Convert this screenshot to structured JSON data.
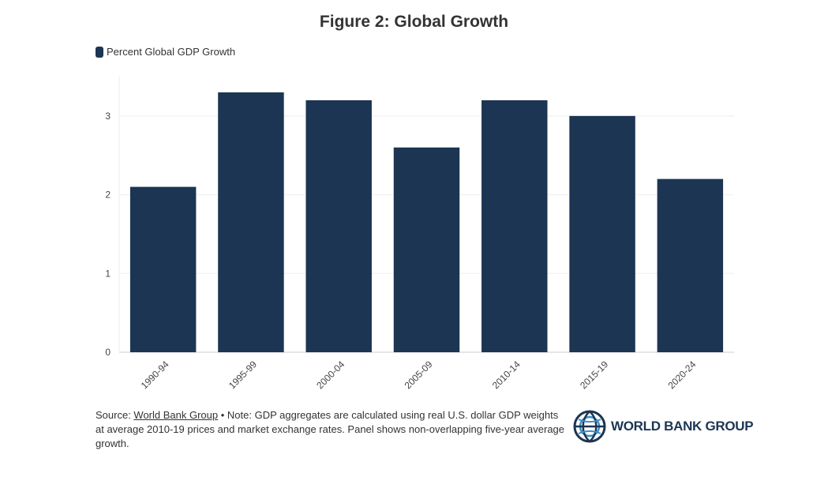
{
  "chart_data": {
    "type": "bar",
    "title": "Figure 2: Global Growth",
    "categories": [
      "1990-94",
      "1995-99",
      "2000-04",
      "2005-09",
      "2010-14",
      "2015-19",
      "2020-24"
    ],
    "series": [
      {
        "name": "Percent Global GDP Growth",
        "values": [
          2.1,
          3.3,
          3.2,
          2.6,
          3.2,
          3.0,
          2.2
        ]
      }
    ],
    "ylim": [
      0,
      3.5
    ],
    "yticks": [
      0,
      1,
      2,
      3
    ],
    "grid": true,
    "legend": "top-left",
    "bar_color": "#1c3553"
  },
  "source": {
    "prefix": "Source: ",
    "link_text": "World Bank Group",
    "note": " • Note: GDP aggregates are calculated using real U.S. dollar GDP weights at average 2010-19 prices and market exchange rates. Panel shows non-overlapping five-year average growth."
  },
  "logo": {
    "text": "WORLD BANK GROUP",
    "color": "#1c3553",
    "icon": "world-bank-globe-icon"
  }
}
